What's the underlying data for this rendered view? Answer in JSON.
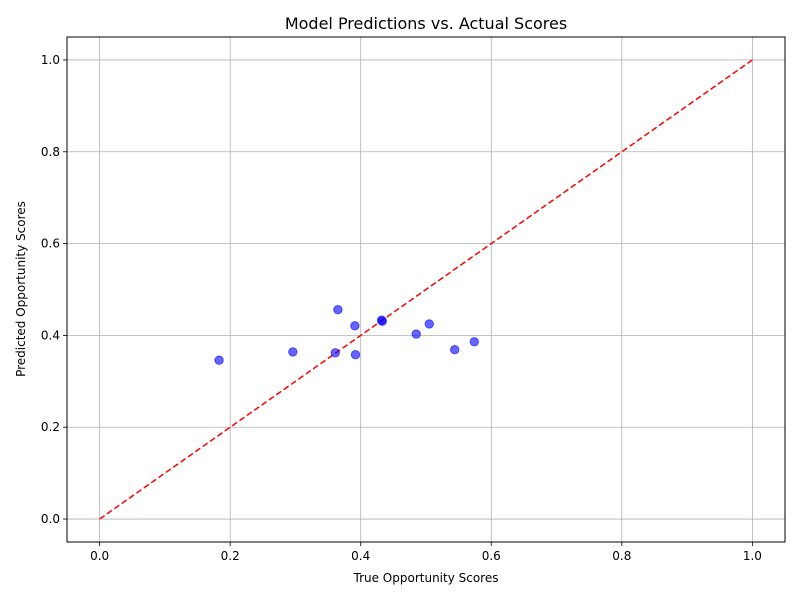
{
  "chart_data": {
    "type": "scatter",
    "title": "Model Predictions vs. Actual Scores",
    "xlabel": "True Opportunity Scores",
    "ylabel": "Predicted Opportunity Scores",
    "xlim": [
      -0.05,
      1.05
    ],
    "ylim": [
      -0.05,
      1.05
    ],
    "xticks": [
      "0.0",
      "0.2",
      "0.4",
      "0.6",
      "0.8",
      "1.0"
    ],
    "yticks": [
      "0.0",
      "0.2",
      "0.4",
      "0.6",
      "0.8",
      "1.0"
    ],
    "grid": true,
    "point_color": "#0000ff",
    "point_alpha": 0.6,
    "reference_line": {
      "x": [
        0,
        1
      ],
      "y": [
        0,
        1
      ],
      "color": "#ff0000",
      "style": "dashed"
    },
    "points": [
      {
        "x": 0.183,
        "y": 0.346
      },
      {
        "x": 0.296,
        "y": 0.364
      },
      {
        "x": 0.361,
        "y": 0.362
      },
      {
        "x": 0.365,
        "y": 0.456
      },
      {
        "x": 0.391,
        "y": 0.421
      },
      {
        "x": 0.392,
        "y": 0.358
      },
      {
        "x": 0.432,
        "y": 0.433
      },
      {
        "x": 0.433,
        "y": 0.431
      },
      {
        "x": 0.485,
        "y": 0.403
      },
      {
        "x": 0.505,
        "y": 0.425
      },
      {
        "x": 0.544,
        "y": 0.369
      },
      {
        "x": 0.574,
        "y": 0.386
      }
    ]
  }
}
